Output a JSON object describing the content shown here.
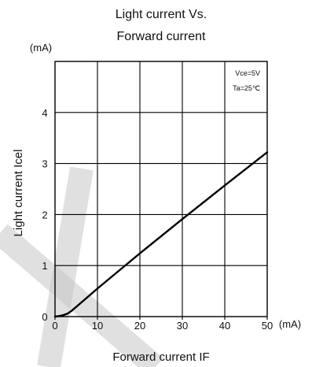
{
  "chart_data": {
    "type": "line",
    "title_lines": [
      "Light current Vs.",
      "Forward current"
    ],
    "y_unit": "(mA)",
    "x_unit": "(mA)",
    "xlabel": "Forward current IF",
    "ylabel": "Light current Icel",
    "xlim": [
      0,
      50
    ],
    "ylim": [
      0,
      5
    ],
    "x_ticks": [
      "0",
      "10",
      "20",
      "30",
      "40",
      "50"
    ],
    "y_ticks": [
      "0",
      "1",
      "2",
      "3",
      "4"
    ],
    "grid": true,
    "conditions": [
      "Vce=5V",
      "Ta=25℃"
    ],
    "series": [
      {
        "x": [
          0,
          1,
          2,
          3,
          4,
          5,
          10,
          20,
          30,
          40,
          50
        ],
        "y": [
          0,
          0.01,
          0.03,
          0.06,
          0.12,
          0.19,
          0.55,
          1.24,
          1.91,
          2.57,
          3.22
        ],
        "color": "#000000"
      }
    ],
    "overlay": {
      "color": "#c7c7c7",
      "opacity": 0.55
    }
  }
}
